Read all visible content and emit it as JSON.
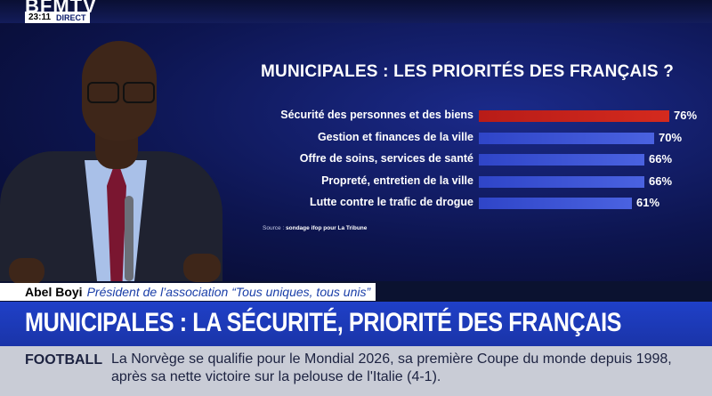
{
  "channel": {
    "brand": "BFMTV",
    "time": "23:11",
    "live": "DIRECT"
  },
  "chart_data": {
    "type": "bar",
    "title": "MUNICIPALES : LES PRIORITÉS DES FRANÇAIS ?",
    "categories": [
      "Sécurité des personnes et des biens",
      "Gestion et finances de la ville",
      "Offre de soins, services de santé",
      "Propreté, entretien de la ville",
      "Lutte contre le trafic de drogue"
    ],
    "values": [
      76,
      70,
      66,
      66,
      61
    ],
    "value_labels": [
      "76%",
      "70%",
      "66%",
      "66%",
      "61%"
    ],
    "highlight_color": "#d42a1e",
    "bar_color": "#4a62e0",
    "source_prefix": "Source :",
    "source_text": "sondage ifop pour La Tribune"
  },
  "lower_third": {
    "name": "Abel Boyi",
    "role": "Président de l’association “Tous uniques, tous unis”",
    "headline": "MUNICIPALES : LA SÉCURITÉ, PRIORITÉ DES FRANÇAIS"
  },
  "ticker": {
    "category": "FOOTBALL",
    "text": "La Norvège se qualifie pour le Mondial 2026, sa première Coupe du monde depuis 1998, après sa nette victoire sur la pelouse de l'Italie (4-1)."
  }
}
